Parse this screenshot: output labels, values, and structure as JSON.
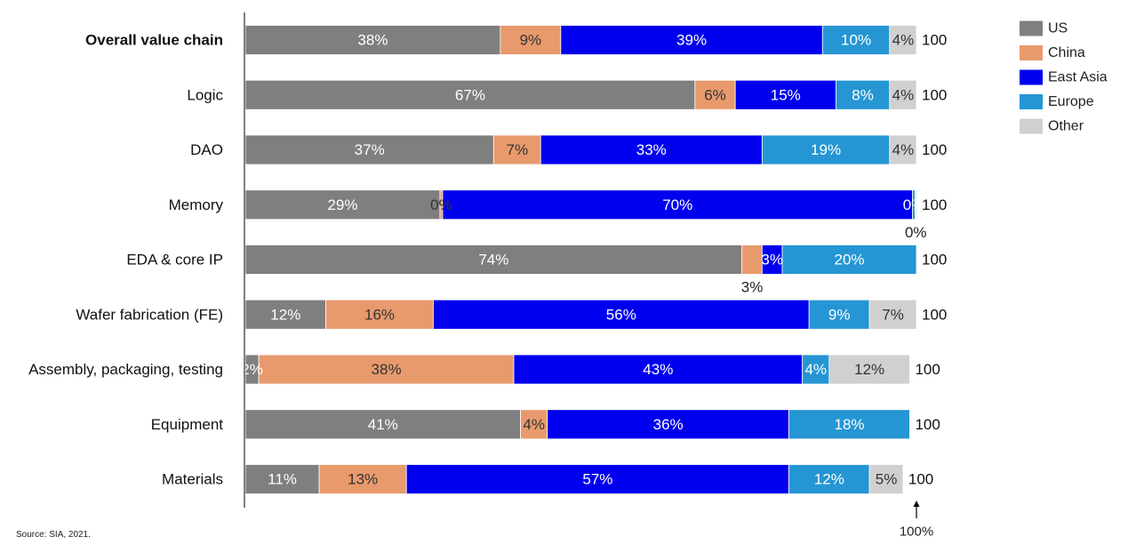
{
  "chart_data": {
    "type": "bar",
    "orientation": "horizontal",
    "stacked": true,
    "title": "",
    "xlabel": "",
    "ylabel": "",
    "xlim": [
      0,
      100
    ],
    "categories": [
      "Overall value chain",
      "Logic",
      "DAO",
      "Memory",
      "EDA & core IP",
      "Wafer fabrication (FE)",
      "Assembly, packaging, testing",
      "Equipment",
      "Materials"
    ],
    "highlighted_category": "Overall value chain",
    "totals": [
      "100",
      "100",
      "100",
      "100",
      "100",
      "100",
      "100",
      "100",
      "100"
    ],
    "series": [
      {
        "name": "US",
        "color": "#7f7f7f",
        "values": [
          38,
          67,
          37,
          29,
          74,
          12,
          2,
          41,
          11
        ],
        "labels": [
          "38%",
          "67%",
          "37%",
          "29%",
          "74%",
          "12%",
          "2%",
          "41%",
          "11%"
        ]
      },
      {
        "name": "China",
        "color": "#e89a6d",
        "values": [
          9,
          6,
          7,
          0.4,
          3,
          16,
          38,
          4,
          13
        ],
        "labels": [
          "9%",
          "6%",
          "7%",
          "0%",
          "3%",
          "16%",
          "38%",
          "4%",
          "13%"
        ]
      },
      {
        "name": "East Asia",
        "color": "#0000ee",
        "values": [
          39,
          15,
          33,
          70,
          3,
          56,
          43,
          36,
          57
        ],
        "labels": [
          "39%",
          "15%",
          "33%",
          "70%",
          "3%",
          "56%",
          "43%",
          "36%",
          "57%"
        ]
      },
      {
        "name": "Europe",
        "color": "#2596d3",
        "values": [
          10,
          8,
          19,
          0.4,
          20,
          9,
          4,
          18,
          12
        ],
        "labels": [
          "10%",
          "8%",
          "19%",
          "0%",
          "20%",
          "9%",
          "4%",
          "18%",
          "12%"
        ]
      },
      {
        "name": "Other",
        "color": "#d0d0d0",
        "values": [
          4,
          4,
          4,
          0.2,
          0,
          7,
          12,
          0,
          5
        ],
        "labels": [
          "4%",
          "4%",
          "4%",
          "0%",
          "",
          "7%",
          "12%",
          "",
          "5%"
        ]
      }
    ],
    "outside_labels": [
      {
        "category": "Memory",
        "series": "Other",
        "text": "0%"
      },
      {
        "category": "EDA & core IP",
        "series": "China",
        "text": "3%"
      }
    ],
    "reference_marker": "100%",
    "legend_position": "top-right",
    "legend": [
      "US",
      "China",
      "East Asia",
      "Europe",
      "Other"
    ],
    "source": "Source: SIA, 2021."
  }
}
